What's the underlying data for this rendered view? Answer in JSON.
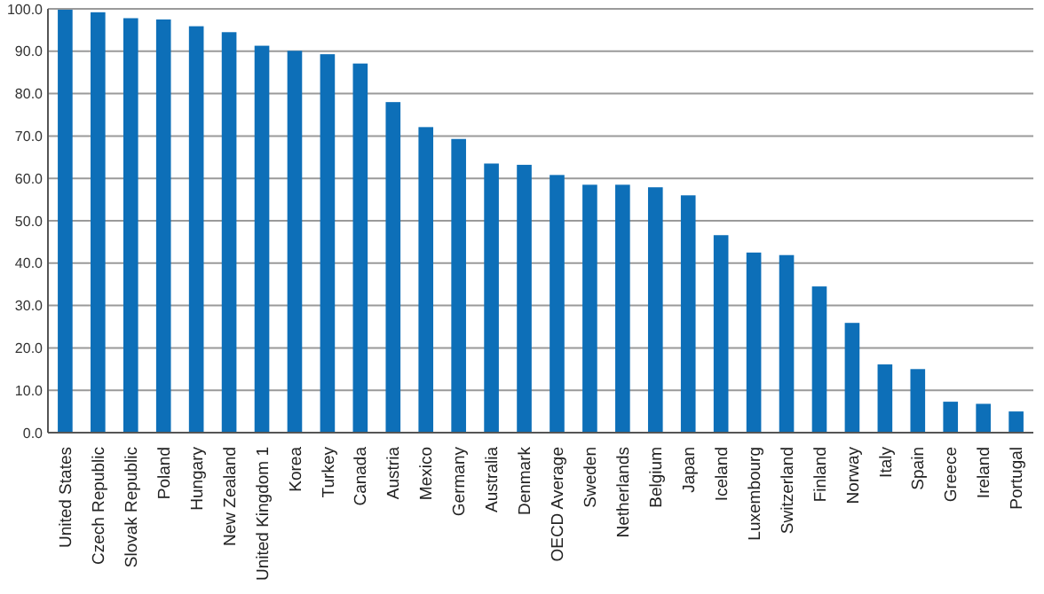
{
  "chart_data": {
    "type": "bar",
    "categories": [
      "United States",
      "Czech Republic",
      "Slovak Republic",
      "Poland",
      "Hungary",
      "New Zealand",
      "United Kingdom 1",
      "Korea",
      "Turkey",
      "Canada",
      "Austria",
      "Mexico",
      "Germany",
      "Australia",
      "Denmark",
      "OECD Average",
      "Sweden",
      "Netherlands",
      "Belgium",
      "Japan",
      "Iceland",
      "Luxembourg",
      "Switzerland",
      "Finland",
      "Norway",
      "Italy",
      "Spain",
      "Greece",
      "Ireland",
      "Portugal"
    ],
    "values": [
      99.8,
      99.2,
      97.8,
      97.5,
      95.9,
      94.5,
      91.3,
      90.1,
      89.3,
      87.1,
      78.0,
      72.1,
      69.3,
      63.5,
      63.2,
      60.8,
      58.5,
      58.5,
      57.9,
      56.0,
      46.6,
      42.5,
      41.9,
      34.5,
      25.9,
      16.1,
      15.0,
      7.3,
      6.8,
      5.0
    ],
    "color": "#0d6fb8",
    "ylim": [
      0,
      100
    ],
    "yticks": [
      {
        "value": 0,
        "label": "0.0"
      },
      {
        "value": 10,
        "label": "10.0"
      },
      {
        "value": 20,
        "label": "20.0"
      },
      {
        "value": 30,
        "label": "30.0"
      },
      {
        "value": 40,
        "label": "40.0"
      },
      {
        "value": 50,
        "label": "50.0"
      },
      {
        "value": 60,
        "label": "60.0"
      },
      {
        "value": 70,
        "label": "70.0"
      },
      {
        "value": 80,
        "label": "80.0"
      },
      {
        "value": 90,
        "label": "90.0"
      },
      {
        "value": 100,
        "label": "100.0"
      }
    ],
    "grid": true
  }
}
